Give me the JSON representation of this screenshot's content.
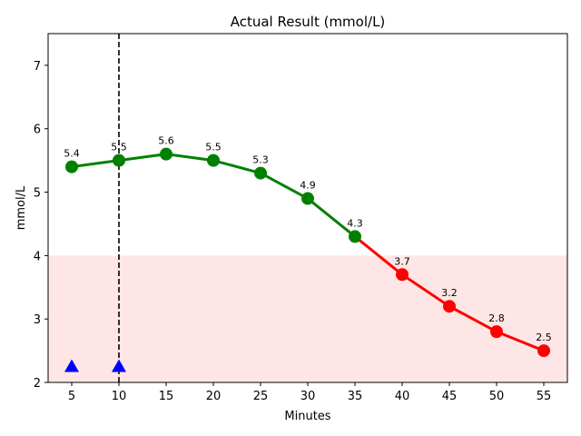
{
  "chart_data": {
    "type": "line",
    "title": "Actual Result (mmol/L)",
    "xlabel": "Minutes",
    "ylabel": "mmol/L",
    "x": [
      5,
      10,
      15,
      20,
      25,
      30,
      35,
      40,
      45,
      50,
      55
    ],
    "values": [
      5.4,
      5.5,
      5.6,
      5.5,
      5.3,
      4.9,
      4.3,
      3.7,
      3.2,
      2.8,
      2.5
    ],
    "data_labels": [
      "5.4",
      "5.5",
      "5.6",
      "5.5",
      "5.3",
      "4.9",
      "4.3",
      "3.7",
      "3.2",
      "2.8",
      "2.5"
    ],
    "threshold": 4,
    "xlim": [
      2.5,
      57.5
    ],
    "ylim": [
      2,
      7.5
    ],
    "xticks": [
      5,
      10,
      15,
      20,
      25,
      30,
      35,
      40,
      45,
      50,
      55
    ],
    "xtick_labels": [
      "5",
      "10",
      "15",
      "20",
      "25",
      "30",
      "35",
      "40",
      "45",
      "50",
      "55"
    ],
    "yticks": [
      2,
      3,
      4,
      5,
      6,
      7
    ],
    "ytick_labels": [
      "2",
      "3",
      "4",
      "5",
      "6",
      "7"
    ],
    "vline_x": 10,
    "markers": [
      {
        "x": 5,
        "y": 2.25
      },
      {
        "x": 10,
        "y": 2.25
      }
    ],
    "colors": {
      "normal": "#008000",
      "low": "#ff0000",
      "low_band": "#ffe6e6",
      "marker": "#0000ff",
      "vline": "#000000"
    }
  }
}
